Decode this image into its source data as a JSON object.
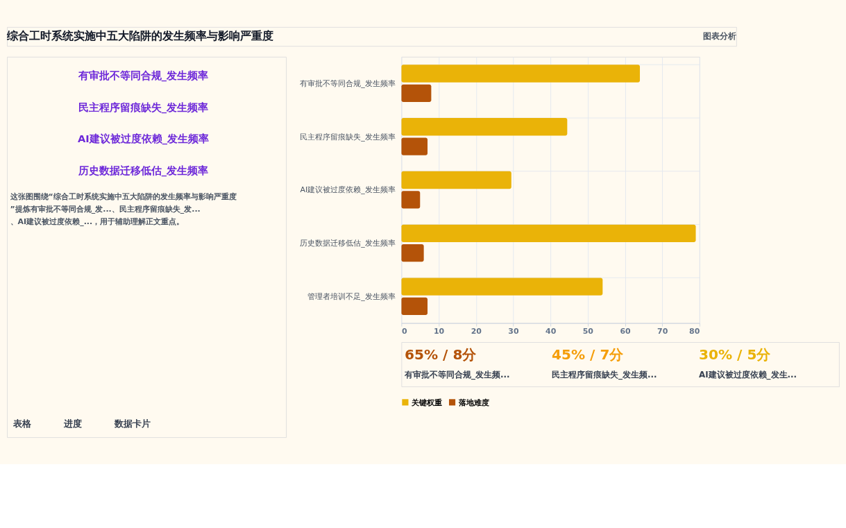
{
  "chart_data": [
    {
      "type": "other",
      "title": "综合工时系统实施中五大陷阱的发生频率与影响严重度",
      "annotations": [
        "图表分析",
        "有审批不等同合规_发生频率",
        "民主程序留痕缺失_发生频率",
        "AI建议被过度依赖_发生频率",
        "历史数据迁移低估_发生频率",
        "这张图围绕“综合工时系统实施中五大陷阱的发生频率与影响严重度”提炼有审批不等同合规_发...、民主程序留痕缺失_发...、AI建议被过度依赖_...，用于辅助理解正文重点。",
        "表格",
        "进度",
        "数据卡片"
      ]
    },
    {
      "type": "bar",
      "orientation": "horizontal",
      "categories": [
        "有审批不等同合规_发生频率",
        "民主程序留痕缺失_发生频率",
        "AI建议被过度依赖_发生频率",
        "历史数据迁移低估_发生频率",
        "管理者培训不足_发生频率"
      ],
      "series": [
        {
          "name": "关键权重",
          "color": "#eab308",
          "values": [
            64,
            44.5,
            29.5,
            79,
            54
          ]
        },
        {
          "name": "落地难度",
          "color": "#b45309",
          "values": [
            8,
            7,
            5,
            6,
            7
          ]
        }
      ],
      "xlim": [
        0,
        80
      ],
      "xticks": [
        0,
        10,
        20,
        30,
        40,
        50,
        60,
        70,
        80
      ],
      "grid": true,
      "legend": "bottom"
    },
    {
      "type": "other",
      "annotations": [
        "65% / 8分",
        "有审批不等同合规_发生频...",
        "45% / 7分",
        "民主程序留痕缺失_发生频...",
        "30% / 5分",
        "AI建议被过度依赖_发生..."
      ]
    }
  ]
}
